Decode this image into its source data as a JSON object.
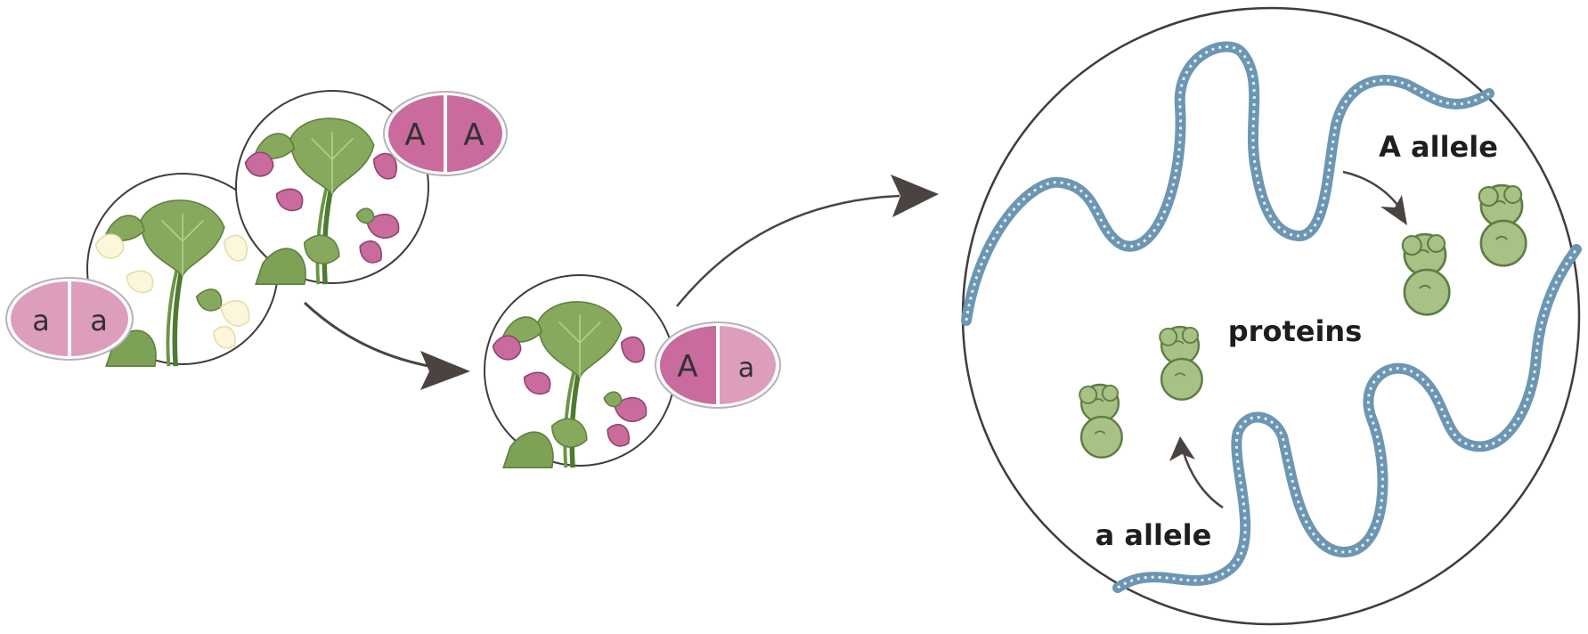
{
  "genotypes": {
    "recessive_parent": [
      "a",
      "a"
    ],
    "dominant_parent": [
      "A",
      "A"
    ],
    "offspring": [
      "A",
      "a"
    ]
  },
  "labels": {
    "dominant_allele": "A allele",
    "recessive_allele": "a allele",
    "proteins": "proteins"
  },
  "colors": {
    "dominant_pink": "#c96b9c",
    "recessive_pink": "#dd9dbd",
    "leaf_green": "#86a95e",
    "leaf_dark": "#5f7f3e",
    "white_flower": "#fbf6dc",
    "dna_blue": "#6d96b3",
    "protein_green": "#a8c286",
    "protein_outline": "#5d7d44",
    "arrow": "#4a4340"
  },
  "icons": [
    "pea-plant-icon",
    "dna-strand-icon",
    "protein-icon",
    "arrow-icon"
  ]
}
